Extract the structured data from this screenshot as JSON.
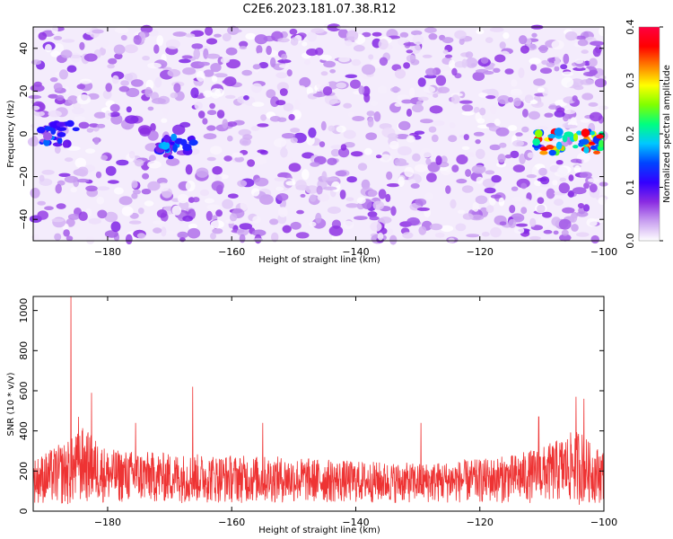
{
  "title": "C2E6.2023.181.07.38.R12",
  "chart_data": [
    {
      "type": "heatmap",
      "xlabel": "Height of straight line (km)",
      "ylabel": "Frequency (Hz)",
      "xlim": [
        -192,
        -100
      ],
      "ylim": [
        -50,
        50
      ],
      "xticks": [
        -180,
        -160,
        -140,
        -120,
        -100
      ],
      "yticks": [
        -40,
        -20,
        0,
        20,
        40
      ],
      "colorbar": {
        "label": "Normalized spectral amplitude",
        "range": [
          0.0,
          0.4
        ],
        "ticks": [
          "0.0",
          "0.1",
          "0.2",
          "0.3",
          "0.4"
        ],
        "colormap": [
          "#ffffff",
          "#c9a0f0",
          "#8a2be2",
          "#3300ff",
          "#0044ff",
          "#00c8ff",
          "#00ff80",
          "#80ff00",
          "#ffff00",
          "#ff8000",
          "#ff0000",
          "#ff0040"
        ]
      },
      "signal_bands": [
        {
          "x_range": [
            -191,
            -185
          ],
          "freq_hz": 0,
          "amplitude": 0.16
        },
        {
          "x_range": [
            -172,
            -166
          ],
          "freq_hz": -6,
          "amplitude": 0.18
        },
        {
          "x_range": [
            -111,
            -100
          ],
          "freq_hz": -4,
          "amplitude": 0.38
        }
      ],
      "background_amplitude": [
        0.0,
        0.08
      ],
      "grid": false
    },
    {
      "type": "line",
      "xlabel": "Height of straight line (km)",
      "ylabel": "SNR (10 * v/v)",
      "xlim": [
        -192,
        -100
      ],
      "ylim": [
        0,
        1070
      ],
      "xticks": [
        -180,
        -160,
        -140,
        -120,
        -100
      ],
      "yticks": [
        0,
        200,
        400,
        600,
        800,
        1000
      ],
      "series_color": "#ee3333",
      "noise_envelope": {
        "x": [
          -192,
          -188,
          -186,
          -184,
          -180,
          -170,
          -160,
          -150,
          -140,
          -130,
          -120,
          -115,
          -110,
          -106,
          -104,
          -102,
          -100
        ],
        "low": [
          40,
          30,
          20,
          40,
          40,
          40,
          40,
          40,
          40,
          40,
          40,
          40,
          40,
          40,
          30,
          40,
          40
        ],
        "high": [
          260,
          330,
          360,
          420,
          310,
          290,
          280,
          270,
          250,
          240,
          260,
          280,
          320,
          380,
          420,
          330,
          310
        ]
      },
      "peaks": [
        {
          "x": -185.9,
          "y": 1070
        },
        {
          "x": -184.7,
          "y": 470
        },
        {
          "x": -182.6,
          "y": 590
        },
        {
          "x": -175.5,
          "y": 440
        },
        {
          "x": -166.3,
          "y": 620
        },
        {
          "x": -155.0,
          "y": 440
        },
        {
          "x": -129.5,
          "y": 440
        },
        {
          "x": -110.5,
          "y": 470
        },
        {
          "x": -104.5,
          "y": 570
        },
        {
          "x": -103.2,
          "y": 560
        }
      ],
      "grid": false
    }
  ]
}
